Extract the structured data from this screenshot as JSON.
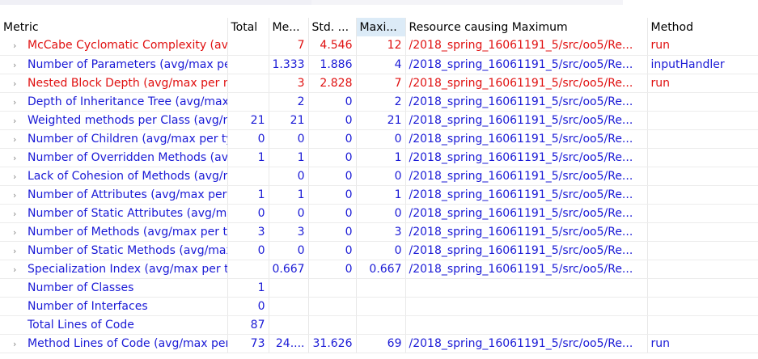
{
  "columns": [
    "Metric",
    "Total",
    "Me...",
    "Std. ...",
    "Maxi...",
    "Resource causing Maximum",
    "Method"
  ],
  "colors": {
    "normal": "#1a1ad6",
    "violation": "#e01010",
    "sorted_header": "#dcebf7"
  },
  "rows": [
    {
      "metric": "McCabe Cyclomatic Complexity (avg/max per method)",
      "total": "",
      "mean": "7",
      "std": "4.546",
      "max": "12",
      "resource": "/2018_spring_16061191_5/src/oo5/Re...",
      "method": "run",
      "red": true,
      "expandable": true
    },
    {
      "metric": "Number of Parameters (avg/max per method)",
      "total": "",
      "mean": "1.333",
      "std": "1.886",
      "max": "4",
      "resource": "/2018_spring_16061191_5/src/oo5/Re...",
      "method": "inputHandler",
      "red": false,
      "expandable": true
    },
    {
      "metric": "Nested Block Depth (avg/max per method)",
      "total": "",
      "mean": "3",
      "std": "2.828",
      "max": "7",
      "resource": "/2018_spring_16061191_5/src/oo5/Re...",
      "method": "run",
      "red": true,
      "expandable": true
    },
    {
      "metric": "Depth of Inheritance Tree (avg/max per type)",
      "total": "",
      "mean": "2",
      "std": "0",
      "max": "2",
      "resource": "/2018_spring_16061191_5/src/oo5/Re...",
      "method": "",
      "red": false,
      "expandable": true
    },
    {
      "metric": "Weighted methods per Class (avg/max per type)",
      "total": "21",
      "mean": "21",
      "std": "0",
      "max": "21",
      "resource": "/2018_spring_16061191_5/src/oo5/Re...",
      "method": "",
      "red": false,
      "expandable": true
    },
    {
      "metric": "Number of Children (avg/max per type)",
      "total": "0",
      "mean": "0",
      "std": "0",
      "max": "0",
      "resource": "/2018_spring_16061191_5/src/oo5/Re...",
      "method": "",
      "red": false,
      "expandable": true
    },
    {
      "metric": "Number of Overridden Methods (avg/max per type)",
      "total": "1",
      "mean": "1",
      "std": "0",
      "max": "1",
      "resource": "/2018_spring_16061191_5/src/oo5/Re...",
      "method": "",
      "red": false,
      "expandable": true
    },
    {
      "metric": "Lack of Cohesion of Methods (avg/max per type)",
      "total": "",
      "mean": "0",
      "std": "0",
      "max": "0",
      "resource": "/2018_spring_16061191_5/src/oo5/Re...",
      "method": "",
      "red": false,
      "expandable": true
    },
    {
      "metric": "Number of Attributes (avg/max per type)",
      "total": "1",
      "mean": "1",
      "std": "0",
      "max": "1",
      "resource": "/2018_spring_16061191_5/src/oo5/Re...",
      "method": "",
      "red": false,
      "expandable": true
    },
    {
      "metric": "Number of Static Attributes (avg/max per type)",
      "total": "0",
      "mean": "0",
      "std": "0",
      "max": "0",
      "resource": "/2018_spring_16061191_5/src/oo5/Re...",
      "method": "",
      "red": false,
      "expandable": true
    },
    {
      "metric": "Number of Methods (avg/max per type)",
      "total": "3",
      "mean": "3",
      "std": "0",
      "max": "3",
      "resource": "/2018_spring_16061191_5/src/oo5/Re...",
      "method": "",
      "red": false,
      "expandable": true
    },
    {
      "metric": "Number of Static Methods (avg/max per type)",
      "total": "0",
      "mean": "0",
      "std": "0",
      "max": "0",
      "resource": "/2018_spring_16061191_5/src/oo5/Re...",
      "method": "",
      "red": false,
      "expandable": true
    },
    {
      "metric": "Specialization Index (avg/max per type)",
      "total": "",
      "mean": "0.667",
      "std": "0",
      "max": "0.667",
      "resource": "/2018_spring_16061191_5/src/oo5/Re...",
      "method": "",
      "red": false,
      "expandable": true
    },
    {
      "metric": "Number of Classes",
      "total": "1",
      "mean": "",
      "std": "",
      "max": "",
      "resource": "",
      "method": "",
      "red": false,
      "expandable": false
    },
    {
      "metric": "Number of Interfaces",
      "total": "0",
      "mean": "",
      "std": "",
      "max": "",
      "resource": "",
      "method": "",
      "red": false,
      "expandable": false
    },
    {
      "metric": "Total Lines of Code",
      "total": "87",
      "mean": "",
      "std": "",
      "max": "",
      "resource": "",
      "method": "",
      "red": false,
      "expandable": false
    },
    {
      "metric": "Method Lines of Code (avg/max per method)",
      "total": "73",
      "mean": "24....",
      "std": "31.626",
      "max": "69",
      "resource": "/2018_spring_16061191_5/src/oo5/Re...",
      "method": "run",
      "red": false,
      "expandable": true
    }
  ]
}
